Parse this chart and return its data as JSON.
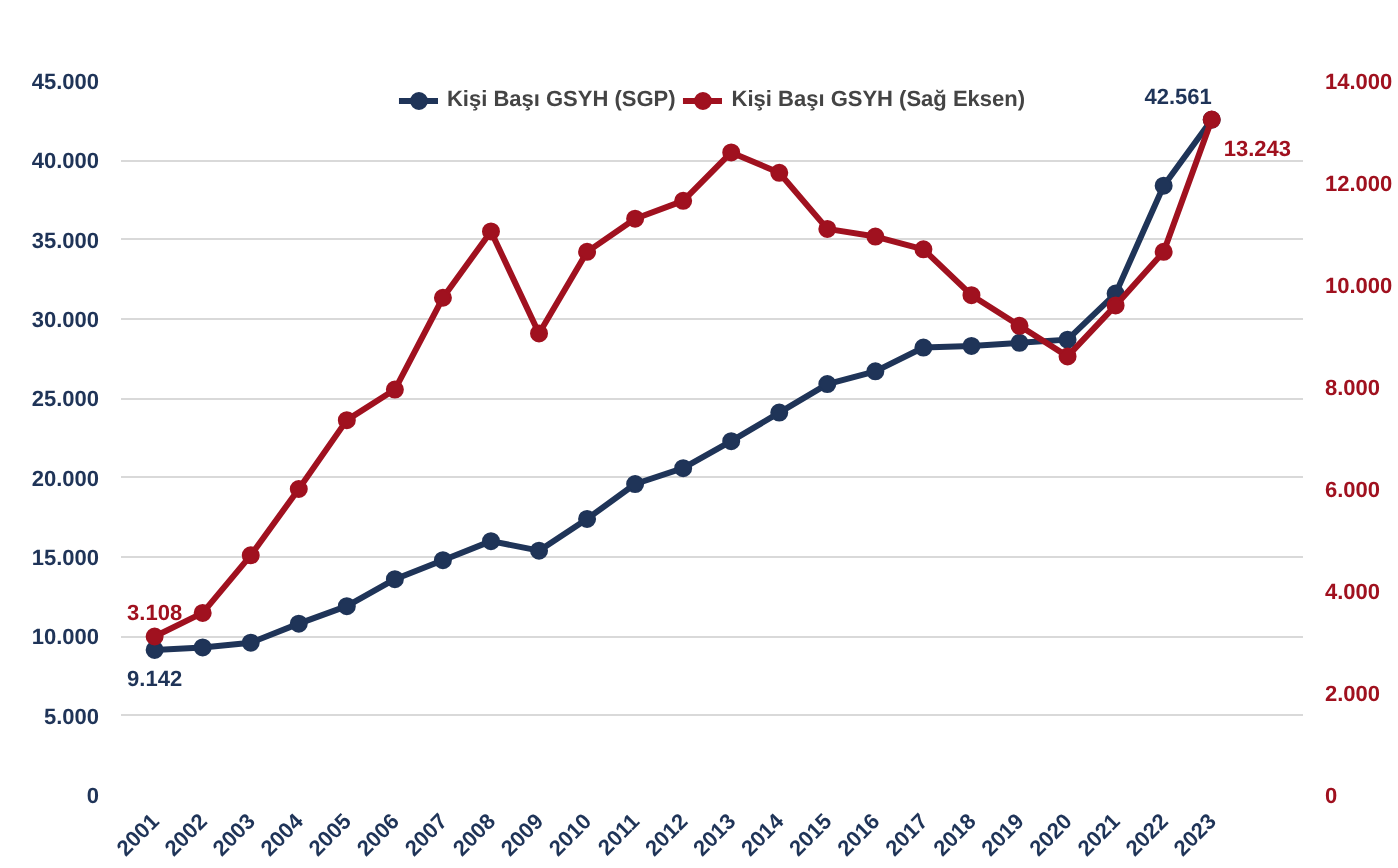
{
  "chart_data": {
    "type": "line",
    "categories": [
      "2001",
      "2002",
      "2003",
      "2004",
      "2005",
      "2006",
      "2007",
      "2008",
      "2009",
      "2010",
      "2011",
      "2012",
      "2013",
      "2014",
      "2015",
      "2016",
      "2017",
      "2018",
      "2019",
      "2020",
      "2021",
      "2022",
      "2023"
    ],
    "series": [
      {
        "name": "Kişi Başı GSYH (SGP)",
        "color": "#1f3458",
        "values": [
          9142,
          9300,
          9600,
          10800,
          11900,
          13600,
          14800,
          16000,
          15400,
          17400,
          19600,
          20600,
          22300,
          24100,
          25900,
          26700,
          28200,
          28300,
          28500,
          28700,
          31600,
          38400,
          42561
        ],
        "value_labels": [
          "9.142",
          null,
          null,
          null,
          null,
          null,
          null,
          null,
          null,
          null,
          null,
          null,
          null,
          null,
          null,
          null,
          null,
          null,
          null,
          null,
          null,
          null,
          "42.561"
        ]
      },
      {
        "name": "Kişi Başı GSYH (Sağ Eksen)",
        "color": "#a0111f",
        "axis": "y2",
        "values": [
          3108,
          3570,
          4700,
          6000,
          7350,
          7950,
          9750,
          11050,
          9050,
          10650,
          11300,
          11650,
          12600,
          12200,
          11100,
          10950,
          10700,
          9800,
          9200,
          8600,
          9600,
          10650,
          13243
        ],
        "value_labels": [
          "3.108",
          null,
          null,
          null,
          null,
          null,
          null,
          null,
          null,
          null,
          null,
          null,
          null,
          null,
          null,
          null,
          null,
          null,
          null,
          null,
          null,
          null,
          "13.243"
        ]
      }
    ],
    "ylim": [
      0,
      45000
    ],
    "yticks": [
      {
        "value": 0,
        "label": "0"
      },
      {
        "value": 5000,
        "label": "5.000"
      },
      {
        "value": 10000,
        "label": "10.000"
      },
      {
        "value": 15000,
        "label": "15.000"
      },
      {
        "value": 20000,
        "label": "20.000"
      },
      {
        "value": 25000,
        "label": "25.000"
      },
      {
        "value": 30000,
        "label": "30.000"
      },
      {
        "value": 35000,
        "label": "35.000"
      },
      {
        "value": 40000,
        "label": "40.000"
      },
      {
        "value": 45000,
        "label": "45.000"
      }
    ],
    "y2lim": [
      0,
      14000
    ],
    "y2ticks": [
      {
        "value": 0,
        "label": "0"
      },
      {
        "value": 2000,
        "label": "2.000"
      },
      {
        "value": 4000,
        "label": "4.000"
      },
      {
        "value": 6000,
        "label": "6.000"
      },
      {
        "value": 8000,
        "label": "8.000"
      },
      {
        "value": 10000,
        "label": "10.000"
      },
      {
        "value": 12000,
        "label": "12.000"
      },
      {
        "value": 14000,
        "label": "14.000"
      }
    ],
    "grid": "y",
    "legend": "top",
    "marker": "circle",
    "line_style": "solid"
  }
}
